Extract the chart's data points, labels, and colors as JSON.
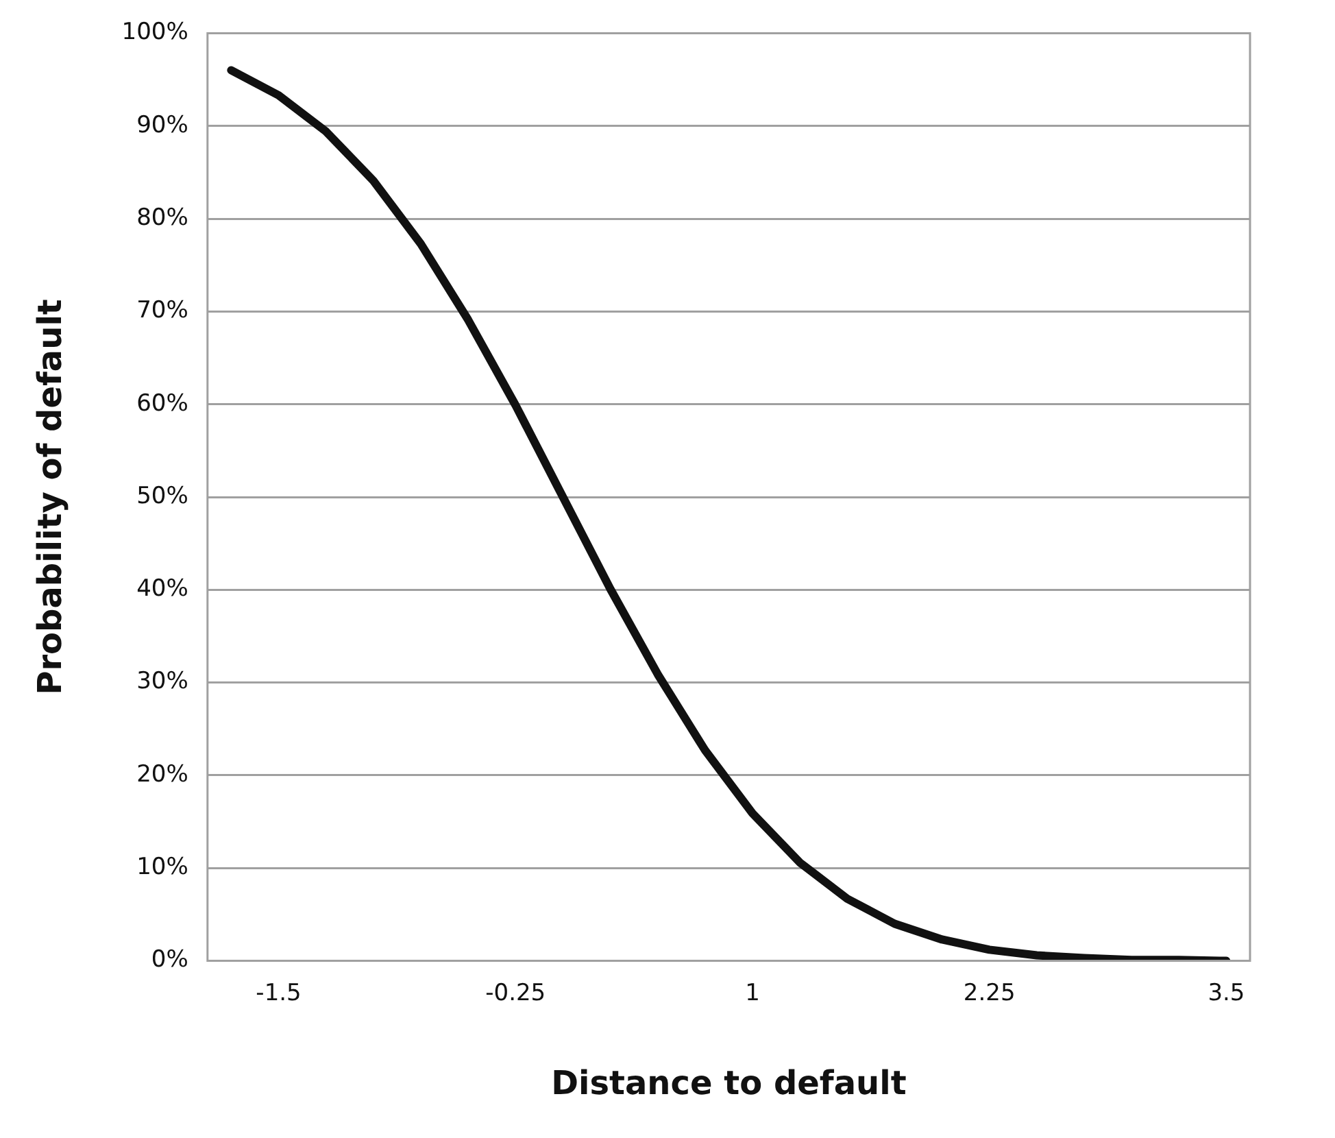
{
  "chart_data": {
    "type": "line",
    "xlabel": "Distance to default",
    "ylabel": "Probability of default",
    "categories": [
      null,
      "-1.5",
      null,
      null,
      null,
      null,
      "-0.25",
      null,
      null,
      null,
      null,
      "1",
      null,
      null,
      null,
      null,
      "2.25",
      null,
      null,
      null,
      null,
      "3.5"
    ],
    "series": [
      {
        "color": "#111111",
        "values": [
          96,
          93.3,
          89.4,
          84.1,
          77.3,
          69.1,
          59.9,
          50,
          40.1,
          30.9,
          22.7,
          15.9,
          10.6,
          6.7,
          4,
          2.3,
          1.2,
          0.6,
          0.3,
          0.1,
          0.1,
          0
        ]
      }
    ],
    "ylim": [
      0,
      100
    ],
    "yticks": [
      {
        "value": 0,
        "label": "0%"
      },
      {
        "value": 10,
        "label": "10%"
      },
      {
        "value": 20,
        "label": "20%"
      },
      {
        "value": 30,
        "label": "30%"
      },
      {
        "value": 40,
        "label": "40%"
      },
      {
        "value": 50,
        "label": "50%"
      },
      {
        "value": 60,
        "label": "60%"
      },
      {
        "value": 70,
        "label": "70%"
      },
      {
        "value": 80,
        "label": "80%"
      },
      {
        "value": 90,
        "label": "90%"
      },
      {
        "value": 100,
        "label": "100%"
      }
    ],
    "grid": "y",
    "legend": false,
    "marker": "none",
    "line_style": "solid"
  }
}
